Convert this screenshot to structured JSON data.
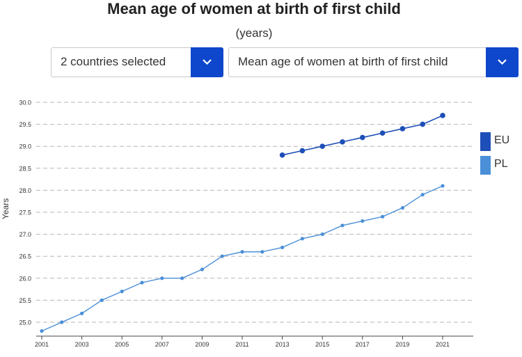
{
  "header": {
    "title": "Mean age of women at birth of first child",
    "subtitle": "(years)"
  },
  "filters": {
    "countries_label": "2 countries selected",
    "indicator_label": "Mean age of women at birth of first child"
  },
  "colors": {
    "EU": "#1e4fb8",
    "PL": "#4a8fd8",
    "accent": "#0e47cb",
    "grid": "#b5b5b5"
  },
  "chart_data": {
    "type": "line",
    "ylabel": "Years",
    "xlabel": "",
    "ylim": [
      24.8,
      30.0
    ],
    "xlim": [
      2001,
      2021
    ],
    "yticks": [
      "25.0",
      "25.5",
      "26.0",
      "26.5",
      "27.0",
      "27.5",
      "28.0",
      "28.5",
      "29.0",
      "29.5",
      "30.0"
    ],
    "xticks": [
      "2001",
      "2003",
      "2005",
      "2007",
      "2009",
      "2011",
      "2013",
      "2015",
      "2017",
      "2019",
      "2021"
    ],
    "grid": true,
    "legend": "right",
    "series": [
      {
        "name": "EU",
        "x": [
          2013,
          2014,
          2015,
          2016,
          2017,
          2018,
          2019,
          2020,
          2021
        ],
        "values": [
          28.8,
          28.9,
          29.0,
          29.1,
          29.2,
          29.3,
          29.4,
          29.5,
          29.7
        ]
      },
      {
        "name": "PL",
        "x": [
          2001,
          2002,
          2003,
          2004,
          2005,
          2006,
          2007,
          2008,
          2009,
          2010,
          2011,
          2012,
          2013,
          2014,
          2015,
          2016,
          2017,
          2018,
          2019,
          2020,
          2021
        ],
        "values": [
          24.8,
          25.0,
          25.2,
          25.5,
          25.7,
          25.9,
          26.0,
          26.0,
          26.2,
          26.5,
          26.6,
          26.6,
          26.7,
          26.9,
          27.0,
          27.2,
          27.3,
          27.4,
          27.6,
          27.9,
          28.1
        ]
      }
    ]
  }
}
